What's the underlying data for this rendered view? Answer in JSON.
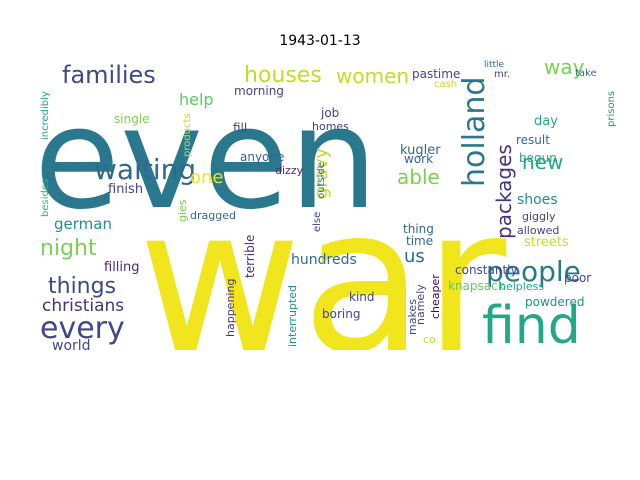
{
  "title": "1943-01-13",
  "words": [
    {
      "t": "even",
      "c": "#2a788e"
    },
    {
      "t": "war",
      "c": "#f1e51d"
    },
    {
      "t": "find",
      "c": "#22a884"
    },
    {
      "t": "people",
      "c": "#2a788e"
    },
    {
      "t": "every",
      "c": "#3e4989"
    },
    {
      "t": "waiting",
      "c": "#31688e"
    },
    {
      "t": "families",
      "c": "#3e4989"
    },
    {
      "t": "houses",
      "c": "#bddf26"
    },
    {
      "t": "women",
      "c": "#bddf26"
    },
    {
      "t": "holland",
      "c": "#2a788e"
    },
    {
      "t": "packages",
      "c": "#46337e"
    },
    {
      "t": "way",
      "c": "#7ad151"
    },
    {
      "t": "new",
      "c": "#22a884"
    },
    {
      "t": "things",
      "c": "#3e4989"
    },
    {
      "t": "night",
      "c": "#7ad151"
    },
    {
      "t": "christians",
      "c": "#46337e"
    },
    {
      "t": "able",
      "c": "#7ad151"
    },
    {
      "t": "gravy",
      "c": "#bddf26"
    },
    {
      "t": "one",
      "c": "#f1e51d"
    },
    {
      "t": "us",
      "c": "#31688e"
    },
    {
      "t": "help",
      "c": "#5ec962"
    },
    {
      "t": "german",
      "c": "#21918c"
    },
    {
      "t": "world",
      "c": "#3e4989"
    },
    {
      "t": "streets",
      "c": "#bddf26"
    },
    {
      "t": "hundreds",
      "c": "#31688e"
    },
    {
      "t": "shoes",
      "c": "#21918c"
    },
    {
      "t": "powdered",
      "c": "#21918c"
    },
    {
      "t": "filling",
      "c": "#482878"
    },
    {
      "t": "finish",
      "c": "#414487"
    },
    {
      "t": "kugler",
      "c": "#31688e"
    },
    {
      "t": "job",
      "c": "#414487"
    },
    {
      "t": "pastime",
      "c": "#414487"
    },
    {
      "t": "day",
      "c": "#22a884"
    },
    {
      "t": "result",
      "c": "#31688e"
    },
    {
      "t": "begun",
      "c": "#22a884"
    },
    {
      "t": "giggly",
      "c": "#414487"
    },
    {
      "t": "allowed",
      "c": "#414487"
    },
    {
      "t": "poor",
      "c": "#3e4989"
    },
    {
      "t": "constantly",
      "c": "#3e4989"
    },
    {
      "t": "knapsack",
      "c": "#5ec962"
    },
    {
      "t": "helpless",
      "c": "#22a884"
    },
    {
      "t": "thing",
      "c": "#31688e"
    },
    {
      "t": "time",
      "c": "#31688e"
    },
    {
      "t": "namely",
      "c": "#3e4989"
    },
    {
      "t": "cheaper",
      "c": "#440154"
    },
    {
      "t": "makes",
      "c": "#3e4989"
    },
    {
      "t": "co.",
      "c": "#bddf26"
    },
    {
      "t": "kind",
      "c": "#3e4989"
    },
    {
      "t": "boring",
      "c": "#3e4989"
    },
    {
      "t": "morning",
      "c": "#414487"
    },
    {
      "t": "anyone",
      "c": "#31688e"
    },
    {
      "t": "dizzy",
      "c": "#472d7b"
    },
    {
      "t": "fill",
      "c": "#414487"
    },
    {
      "t": "single",
      "c": "#7ad151"
    },
    {
      "t": "dragged",
      "c": "#31688e"
    },
    {
      "t": "terrible",
      "c": "#472d7b"
    },
    {
      "t": "happening",
      "c": "#46337e"
    },
    {
      "t": "interrupted",
      "c": "#21918c"
    },
    {
      "t": "incredibly",
      "c": "#22a884"
    },
    {
      "t": "besides",
      "c": "#35b779"
    },
    {
      "t": "products",
      "c": "#bddf26"
    },
    {
      "t": "work",
      "c": "#31688e"
    },
    {
      "t": "outside",
      "c": "#31688e"
    },
    {
      "t": "else",
      "c": "#414487"
    },
    {
      "t": "gies",
      "c": "#7ad151"
    },
    {
      "t": "homes",
      "c": "#414487"
    },
    {
      "t": "mr.",
      "c": "#3e4989"
    },
    {
      "t": "cash",
      "c": "#bddf26"
    },
    {
      "t": "prisons",
      "c": "#21918c"
    },
    {
      "t": "take",
      "c": "#31688e"
    },
    {
      "t": "little",
      "c": "#31688e"
    }
  ]
}
